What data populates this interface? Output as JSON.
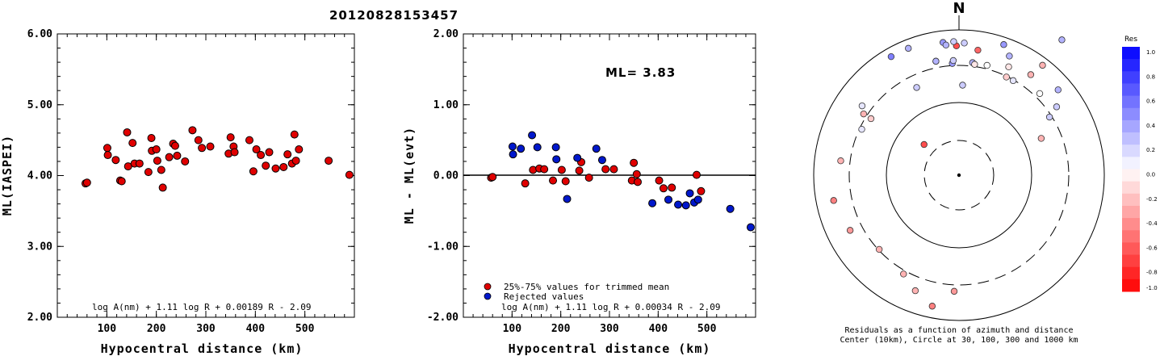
{
  "title": "20120828153457",
  "chart_data": [
    {
      "type": "scatter",
      "xlabel": "Hypocentral distance (km)",
      "ylabel": "ML(IASPEI)",
      "xlim": [
        0,
        600
      ],
      "ylim": [
        2.0,
        6.0
      ],
      "yticks": [
        "2.00",
        "3.00",
        "4.00",
        "5.00",
        "6.00"
      ],
      "xticks": [
        "100",
        "200",
        "300",
        "400",
        "500"
      ],
      "formula": "log A(nm) + 1.11 log R + 0.00189 R - 2.09",
      "color": "#e00000",
      "points": [
        [
          57,
          3.89
        ],
        [
          60,
          3.9
        ],
        [
          101,
          4.39
        ],
        [
          102,
          4.29
        ],
        [
          118,
          4.22
        ],
        [
          127,
          3.93
        ],
        [
          130,
          3.92
        ],
        [
          141,
          4.61
        ],
        [
          143,
          4.13
        ],
        [
          152,
          4.46
        ],
        [
          156,
          4.17
        ],
        [
          166,
          4.17
        ],
        [
          184,
          4.05
        ],
        [
          190,
          4.53
        ],
        [
          191,
          4.35
        ],
        [
          200,
          4.37
        ],
        [
          202,
          4.21
        ],
        [
          210,
          4.08
        ],
        [
          213,
          3.83
        ],
        [
          226,
          4.26
        ],
        [
          234,
          4.45
        ],
        [
          238,
          4.42
        ],
        [
          242,
          4.28
        ],
        [
          258,
          4.2
        ],
        [
          273,
          4.64
        ],
        [
          285,
          4.5
        ],
        [
          292,
          4.39
        ],
        [
          309,
          4.41
        ],
        [
          346,
          4.31
        ],
        [
          350,
          4.54
        ],
        [
          356,
          4.41
        ],
        [
          358,
          4.33
        ],
        [
          388,
          4.5
        ],
        [
          396,
          4.06
        ],
        [
          402,
          4.37
        ],
        [
          411,
          4.29
        ],
        [
          421,
          4.14
        ],
        [
          428,
          4.33
        ],
        [
          441,
          4.1
        ],
        [
          457,
          4.12
        ],
        [
          465,
          4.3
        ],
        [
          474,
          4.17
        ],
        [
          479,
          4.58
        ],
        [
          482,
          4.21
        ],
        [
          488,
          4.37
        ],
        [
          548,
          4.21
        ],
        [
          590,
          4.01
        ]
      ]
    },
    {
      "type": "scatter",
      "xlabel": "Hypocentral distance (km)",
      "ylabel": "ML - ML(evt)",
      "xlim": [
        0,
        600
      ],
      "ylim": [
        -2.0,
        2.0
      ],
      "yticks": [
        "-2.00",
        "-1.00",
        "0.00",
        "1.00",
        "2.00"
      ],
      "xticks": [
        "100",
        "200",
        "300",
        "400",
        "500"
      ],
      "annotation": "ML= 3.83",
      "formula": "log A(nm) + 1.11 log R + 0.00034 R - 2.09",
      "legend": [
        "25%-75% values for trimmed mean",
        "Rejected values"
      ],
      "colors": {
        "trimmed": "#e00000",
        "rejected": "#0018cc"
      },
      "trimmed_points": [
        [
          57,
          -0.03
        ],
        [
          60,
          -0.02
        ],
        [
          127,
          -0.11
        ],
        [
          143,
          0.08
        ],
        [
          156,
          0.1
        ],
        [
          166,
          0.09
        ],
        [
          184,
          -0.07
        ],
        [
          202,
          0.08
        ],
        [
          210,
          -0.08
        ],
        [
          238,
          0.07
        ],
        [
          242,
          0.19
        ],
        [
          258,
          -0.03
        ],
        [
          309,
          0.09
        ],
        [
          292,
          0.09
        ],
        [
          346,
          -0.07
        ],
        [
          350,
          0.18
        ],
        [
          356,
          0.02
        ],
        [
          358,
          -0.09
        ],
        [
          402,
          -0.07
        ],
        [
          411,
          -0.18
        ],
        [
          428,
          -0.17
        ],
        [
          479,
          0.01
        ],
        [
          488,
          -0.22
        ]
      ],
      "rejected_points": [
        [
          101,
          0.41
        ],
        [
          102,
          0.3
        ],
        [
          118,
          0.38
        ],
        [
          141,
          0.57
        ],
        [
          152,
          0.4
        ],
        [
          190,
          0.4
        ],
        [
          191,
          0.23
        ],
        [
          213,
          -0.33
        ],
        [
          234,
          0.25
        ],
        [
          273,
          0.38
        ],
        [
          285,
          0.22
        ],
        [
          388,
          -0.39
        ],
        [
          421,
          -0.34
        ],
        [
          441,
          -0.41
        ],
        [
          457,
          -0.42
        ],
        [
          465,
          -0.25
        ],
        [
          474,
          -0.38
        ],
        [
          482,
          -0.34
        ],
        [
          548,
          -0.47
        ],
        [
          590,
          -0.73
        ]
      ]
    },
    {
      "type": "scatter",
      "title": "N",
      "caption_line1": "Residuals as a function of azimuth and distance",
      "caption_line2": "Center (10km), Circle at 30, 100, 300 and 1000 km",
      "colorbar_title": "Res",
      "colorbar_labels": [
        "1.0",
        "0.8",
        "0.6",
        "0.4",
        "0.2",
        "0.0",
        "-0.2",
        "-0.4",
        "-0.6",
        "-0.8",
        "-1.0"
      ],
      "residual_points": [
        [
          -0.65,
          1.17
        ],
        [
          -0.15,
          0.87
        ],
        [
          0.02,
          0.89
        ],
        [
          0.04,
          0.92
        ],
        [
          0.12,
          0.92
        ],
        [
          -0.12,
          0.78
        ],
        [
          -1.15,
          0.62
        ],
        [
          -0.52,
          0.75
        ],
        [
          0.38,
          0.94
        ],
        [
          0.06,
          0.77
        ],
        [
          0.45,
          0.67
        ],
        [
          -0.14,
          0.77
        ],
        [
          -0.45,
          0.75
        ],
        [
          -0.04,
          0.62
        ],
        [
          -0.65,
          0.95
        ],
        [
          -0.86,
          0.9
        ],
        [
          -0.96,
          0.82
        ],
        [
          -1.0,
          0.74
        ],
        [
          -0.78,
          0.79
        ],
        [
          -0.4,
          0.89
        ],
        [
          -0.33,
          0.95
        ],
        [
          0.2,
          0.8
        ],
        [
          0.05,
          0.79
        ],
        [
          0.2,
          0.8
        ],
        [
          -0.62,
          0.85
        ],
        [
          -0.43,
          0.82
        ],
        [
          -0.25,
          0.78
        ],
        [
          -0.04,
          0.91
        ],
        [
          0.1,
          0.9
        ],
        [
          0.52,
          0.94
        ],
        [
          0.95,
          0.82
        ],
        [
          1.0,
          0.78
        ],
        [
          1.0,
          0.72
        ],
        [
          1.13,
          0.74
        ],
        [
          1.45,
          0.82
        ],
        [
          1.77,
          0.88
        ],
        [
          2.04,
          0.84
        ],
        [
          2.32,
          0.75
        ],
        [
          2.63,
          0.78
        ],
        [
          2.78,
          0.85
        ],
        [
          2.94,
          0.92
        ],
        [
          3.1,
          0.8
        ],
        [
          0.0,
          0.0
        ],
        [
          0.85,
          0.32
        ]
      ]
    }
  ]
}
